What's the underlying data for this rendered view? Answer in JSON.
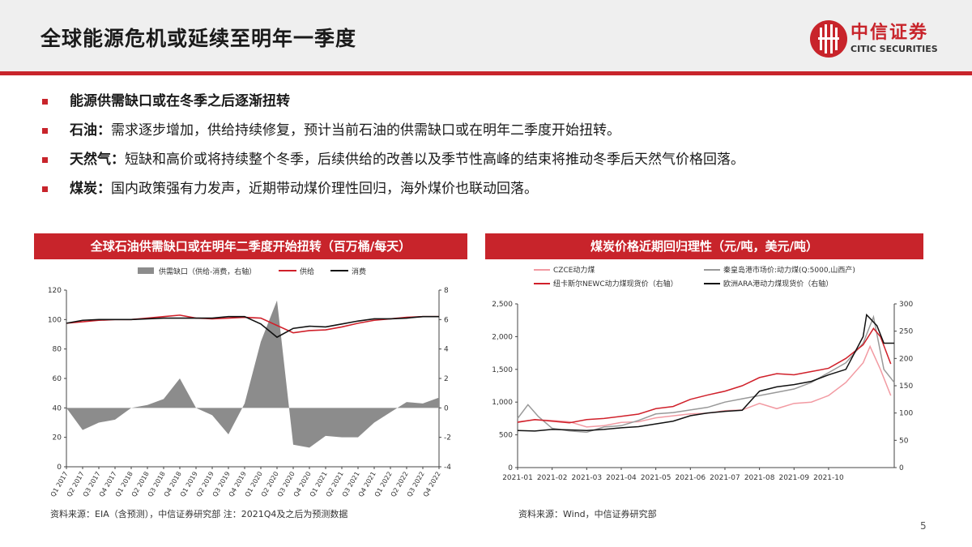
{
  "page": {
    "title": "全球能源危机或延续至明年一季度",
    "page_number": "5",
    "logo": {
      "cn": "中信证券",
      "en": "CITIC SECURITIES"
    },
    "bullets": [
      {
        "bold": "能源供需缺口或在冬季之后逐渐扭转",
        "text": ""
      },
      {
        "bold": "石油：",
        "text": "需求逐步增加，供给持续修复，预计当前石油的供需缺口或在明年二季度开始扭转。"
      },
      {
        "bold": "天然气：",
        "text": "短缺和高价或将持续整个冬季，后续供给的改善以及季节性高峰的结束将推动冬季后天然气价格回落。"
      },
      {
        "bold": "煤炭：",
        "text": "国内政策强有力发声，近期带动煤价理性回归，海外煤价也联动回落。"
      }
    ],
    "left_panel": {
      "title": "全球石油供需缺口或在明年二季度开始扭转（百万桶/每天）",
      "source": "资料来源：EIA（含预测），中信证券研究部 注：2021Q4及之后为预测数据"
    },
    "right_panel": {
      "title": "煤炭价格近期回归理性（元/吨，美元/吨）",
      "source": "资料来源：Wind，中信证券研究部"
    }
  },
  "chart_data": [
    {
      "type": "line",
      "title": "全球石油供需缺口或在明年二季度开始扭转（百万桶/每天）",
      "categories": [
        "Q1 2017",
        "Q2 2017",
        "Q3 2017",
        "Q4 2017",
        "Q1 2018",
        "Q2 2018",
        "Q3 2018",
        "Q4 2018",
        "Q1 2019",
        "Q2 2019",
        "Q3 2019",
        "Q4 2019",
        "Q1 2020",
        "Q2 2020",
        "Q3 2020",
        "Q4 2020",
        "Q1 2021",
        "Q2 2021",
        "Q3 2021",
        "Q4 2021",
        "Q1 2022",
        "Q2 2022",
        "Q3 2022",
        "Q4 2022"
      ],
      "ylim_left": [
        0,
        120
      ],
      "yticks_left": [
        "0",
        "20",
        "40",
        "60",
        "80",
        "100",
        "120"
      ],
      "ylim_right": [
        -4,
        8
      ],
      "yticks_right": [
        "-4",
        "-2",
        "0",
        "2",
        "4",
        "6",
        "8"
      ],
      "legend_position": "top",
      "series": [
        {
          "name": "供需缺口（供给-消费，右轴）",
          "kind": "area",
          "axis": "right",
          "color": "#8c8c8c",
          "values": [
            0.0,
            -1.5,
            -1.0,
            -0.8,
            0.0,
            0.2,
            0.6,
            2.0,
            0.0,
            -0.5,
            -1.8,
            0.3,
            4.5,
            7.3,
            -2.5,
            -2.7,
            -1.9,
            -2.0,
            -2.0,
            -1.0,
            -0.3,
            0.4,
            0.3,
            0.7
          ]
        },
        {
          "name": "供给",
          "kind": "line",
          "axis": "left",
          "color": "#d0202a",
          "values": [
            97.5,
            98.5,
            99.5,
            100.0,
            100.0,
            101.0,
            102.0,
            103.0,
            101.0,
            100.5,
            101.0,
            101.5,
            101.0,
            96.0,
            91.0,
            92.5,
            93.0,
            95.0,
            97.5,
            99.5,
            100.5,
            101.5,
            102.0,
            102.0
          ]
        },
        {
          "name": "消费",
          "kind": "line",
          "axis": "left",
          "color": "#111111",
          "values": [
            97.5,
            99.5,
            100.0,
            100.0,
            100.0,
            100.5,
            101.0,
            101.0,
            101.0,
            101.0,
            102.0,
            102.0,
            97.0,
            88.0,
            94.0,
            95.5,
            95.0,
            97.0,
            99.0,
            100.5,
            100.5,
            101.0,
            102.0,
            102.0
          ]
        }
      ]
    },
    {
      "type": "line",
      "title": "煤炭价格近期回归理性（元/吨，美元/吨）",
      "x": [
        "2021-01",
        "2021-02",
        "2021-03",
        "2021-04",
        "2021-05",
        "2021-06",
        "2021-07",
        "2021-08",
        "2021-09",
        "2021-10"
      ],
      "x_tick_labels": [
        "2021-01",
        "2021-02",
        "2021-03",
        "2021-04",
        "2021-05",
        "2021-06",
        "2021-07",
        "2021-08",
        "2021-09",
        "2021-10"
      ],
      "ylim_left": [
        0,
        2500
      ],
      "yticks_left": [
        "0",
        "500",
        "1,000",
        "1,500",
        "2,000",
        "2,500"
      ],
      "ylim_right": [
        0,
        300
      ],
      "yticks_right": [
        "0",
        "50",
        "100",
        "150",
        "200",
        "250",
        "300"
      ],
      "legend_position": "top",
      "series": [
        {
          "name": "CZCE动力煤",
          "axis": "left",
          "color": "#f29aa2",
          "points": [
            [
              0,
              700
            ],
            [
              0.5,
              730
            ],
            [
              1,
              720
            ],
            [
              1.5,
              700
            ],
            [
              2,
              620
            ],
            [
              2.5,
              640
            ],
            [
              3,
              690
            ],
            [
              3.5,
              700
            ],
            [
              4,
              760
            ],
            [
              4.5,
              790
            ],
            [
              5,
              820
            ],
            [
              5.5,
              830
            ],
            [
              6,
              870
            ],
            [
              6.5,
              880
            ],
            [
              7,
              980
            ],
            [
              7.5,
              900
            ],
            [
              8,
              980
            ],
            [
              8.5,
              1000
            ],
            [
              9,
              1100
            ],
            [
              9.5,
              1300
            ],
            [
              10,
              1600
            ],
            [
              10.2,
              1850
            ],
            [
              10.5,
              1500
            ],
            [
              10.8,
              1100
            ]
          ]
        },
        {
          "name": "秦皇岛港市场价:动力煤(Q:5000,山西产)",
          "axis": "left",
          "color": "#999999",
          "points": [
            [
              0,
              750
            ],
            [
              0.3,
              960
            ],
            [
              0.6,
              780
            ],
            [
              1,
              600
            ],
            [
              1.5,
              560
            ],
            [
              2,
              540
            ],
            [
              2.5,
              620
            ],
            [
              3,
              640
            ],
            [
              3.5,
              720
            ],
            [
              4,
              820
            ],
            [
              4.5,
              840
            ],
            [
              5,
              880
            ],
            [
              5.5,
              920
            ],
            [
              6,
              1000
            ],
            [
              6.5,
              1050
            ],
            [
              7,
              1100
            ],
            [
              7.5,
              1150
            ],
            [
              8,
              1200
            ],
            [
              8.5,
              1300
            ],
            [
              9,
              1450
            ],
            [
              9.5,
              1600
            ],
            [
              10,
              1900
            ],
            [
              10.3,
              2300
            ],
            [
              10.6,
              1500
            ],
            [
              10.9,
              1300
            ]
          ]
        },
        {
          "name": "纽卡斯尔NEWC动力煤现货价（右轴）",
          "axis": "right",
          "color": "#d0202a",
          "points": [
            [
              0,
              83
            ],
            [
              0.5,
              88
            ],
            [
              1,
              85
            ],
            [
              1.5,
              82
            ],
            [
              2,
              88
            ],
            [
              2.5,
              90
            ],
            [
              3,
              94
            ],
            [
              3.5,
              98
            ],
            [
              4,
              108
            ],
            [
              4.5,
              112
            ],
            [
              5,
              125
            ],
            [
              5.5,
              133
            ],
            [
              6,
              140
            ],
            [
              6.5,
              150
            ],
            [
              7,
              165
            ],
            [
              7.5,
              172
            ],
            [
              8,
              170
            ],
            [
              8.5,
              176
            ],
            [
              9,
              182
            ],
            [
              9.5,
              200
            ],
            [
              10,
              225
            ],
            [
              10.3,
              255
            ],
            [
              10.5,
              240
            ],
            [
              10.8,
              190
            ]
          ]
        },
        {
          "name": "欧洲ARA港动力煤现货价（右轴）",
          "axis": "right",
          "color": "#111111",
          "points": [
            [
              0,
              68
            ],
            [
              0.5,
              67
            ],
            [
              1,
              70
            ],
            [
              1.5,
              69
            ],
            [
              2,
              68
            ],
            [
              2.5,
              70
            ],
            [
              3,
              73
            ],
            [
              3.5,
              75
            ],
            [
              4,
              80
            ],
            [
              4.5,
              85
            ],
            [
              5,
              95
            ],
            [
              5.5,
              100
            ],
            [
              6,
              103
            ],
            [
              6.5,
              105
            ],
            [
              7,
              140
            ],
            [
              7.5,
              148
            ],
            [
              8,
              152
            ],
            [
              8.5,
              158
            ],
            [
              9,
              170
            ],
            [
              9.5,
              180
            ],
            [
              10,
              240
            ],
            [
              10.1,
              280
            ],
            [
              10.4,
              260
            ],
            [
              10.6,
              228
            ],
            [
              10.9,
              228
            ]
          ]
        }
      ]
    }
  ]
}
